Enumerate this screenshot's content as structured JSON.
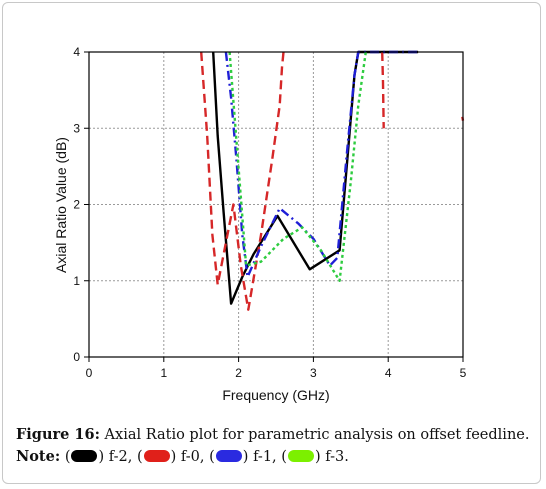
{
  "chart_data": {
    "type": "line",
    "xlabel": "Frequency (GHz)",
    "ylabel": "Axial Ratio Value (dB)",
    "xlim": [
      0,
      5
    ],
    "ylim": [
      0,
      4
    ],
    "xticks": [
      "0",
      "1",
      "2",
      "3",
      "4",
      "5"
    ],
    "yticks": [
      "0",
      "1",
      "2",
      "3",
      "4"
    ],
    "grid": true,
    "series": [
      {
        "name": "f-2",
        "color": "#000000",
        "style": "solid",
        "points": [
          [
            1.66,
            4.0
          ],
          [
            1.72,
            2.9
          ],
          [
            1.8,
            1.9
          ],
          [
            1.9,
            0.7
          ],
          [
            2.05,
            1.05
          ],
          [
            2.2,
            1.35
          ],
          [
            2.52,
            1.85
          ],
          [
            2.95,
            1.15
          ],
          [
            3.35,
            1.4
          ],
          [
            3.55,
            3.7
          ],
          [
            3.6,
            4.0
          ],
          [
            4.0,
            4.0
          ],
          [
            4.4,
            4.0
          ]
        ]
      },
      {
        "name": "f-0",
        "color": "#d62728",
        "style": "dashed",
        "segments": [
          [
            [
              1.5,
              4.0
            ],
            [
              1.58,
              2.9
            ],
            [
              1.65,
              1.6
            ],
            [
              1.72,
              0.95
            ],
            [
              1.83,
              1.5
            ],
            [
              1.93,
              2.0
            ],
            [
              2.03,
              1.2
            ],
            [
              2.13,
              0.62
            ],
            [
              2.3,
              1.6
            ],
            [
              2.45,
              2.6
            ],
            [
              2.55,
              3.3
            ],
            [
              2.58,
              3.8
            ],
            [
              2.6,
              4.0
            ]
          ],
          [
            [
              3.92,
              4.0
            ],
            [
              3.93,
              3.6
            ],
            [
              3.94,
              3.0
            ]
          ],
          [
            [
              4.99,
              3.15
            ],
            [
              5.0,
              3.1
            ]
          ]
        ]
      },
      {
        "name": "f-1",
        "color": "#1f1fd6",
        "style": "dashdot",
        "points": [
          [
            1.83,
            4.0
          ],
          [
            1.9,
            3.4
          ],
          [
            1.97,
            2.6
          ],
          [
            2.05,
            1.6
          ],
          [
            2.12,
            1.05
          ],
          [
            2.3,
            1.45
          ],
          [
            2.55,
            1.95
          ],
          [
            2.8,
            1.75
          ],
          [
            3.0,
            1.55
          ],
          [
            3.22,
            1.2
          ],
          [
            3.32,
            1.3
          ],
          [
            3.45,
            2.7
          ],
          [
            3.55,
            3.7
          ],
          [
            3.6,
            4.0
          ],
          [
            4.4,
            4.0
          ]
        ]
      },
      {
        "name": "f-3",
        "color": "#2ecc40",
        "style": "dotted",
        "points": [
          [
            1.88,
            4.0
          ],
          [
            1.95,
            3.1
          ],
          [
            2.03,
            2.1
          ],
          [
            2.1,
            1.2
          ],
          [
            2.3,
            1.25
          ],
          [
            2.6,
            1.55
          ],
          [
            2.85,
            1.7
          ],
          [
            3.1,
            1.4
          ],
          [
            3.35,
            1.0
          ],
          [
            3.5,
            2.3
          ],
          [
            3.6,
            3.3
          ],
          [
            3.7,
            4.0
          ]
        ]
      }
    ]
  },
  "caption": {
    "figure_label": "Figure 16:",
    "figure_text": " Axial Ratio plot for parametric analysis on offset feedline.",
    "note_label": "Note:",
    "legend": [
      {
        "name": "f-2",
        "color": "#000000"
      },
      {
        "name": "f-0",
        "color": "#e0201a"
      },
      {
        "name": "f-1",
        "color": "#2a2ae0"
      },
      {
        "name": "f-3",
        "color": "#7cf000"
      }
    ]
  }
}
